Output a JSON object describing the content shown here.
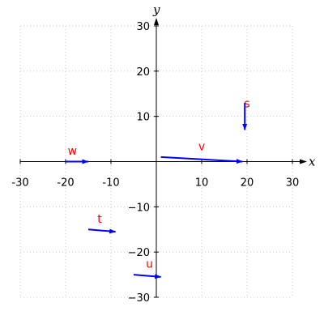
{
  "chart_data": {
    "type": "scatter",
    "kind": "vector-plot",
    "title": "",
    "xlabel": "x",
    "ylabel": "y",
    "xlim": [
      -30,
      30
    ],
    "ylim": [
      -30,
      30
    ],
    "x_ticks": [
      -30,
      -20,
      -10,
      10,
      20,
      30
    ],
    "y_ticks": [
      -30,
      -20,
      -10,
      10,
      20,
      30
    ],
    "x_tick_labels": [
      "-30",
      "-20",
      "-10",
      "10",
      "20",
      "30"
    ],
    "y_tick_labels": [
      "−30",
      "−20",
      "−10",
      "10",
      "20",
      "30"
    ],
    "grid": true,
    "grid_style": "dotted",
    "colors": {
      "vector": "#0000ff",
      "label": "#ff0000",
      "grid": "#c8c8c8",
      "axis": "#000000"
    },
    "vectors": [
      {
        "name": "v",
        "x0": 1,
        "y0": 1,
        "x1": 19,
        "y1": 0
      },
      {
        "name": "s",
        "x0": 19.5,
        "y0": 13,
        "x1": 19.5,
        "y1": 7
      },
      {
        "name": "w",
        "x0": -20,
        "y0": 0,
        "x1": -15,
        "y1": 0
      },
      {
        "name": "t",
        "x0": -15,
        "y0": -15,
        "x1": -9,
        "y1": -15.5
      },
      {
        "name": "u",
        "x0": -5,
        "y0": -25,
        "x1": 1,
        "y1": -25.5
      }
    ],
    "label_positions": [
      {
        "name": "v",
        "x": 10,
        "y": 2.5
      },
      {
        "name": "s",
        "x": 20,
        "y": 12
      },
      {
        "name": "w",
        "x": -18.5,
        "y": 1.5
      },
      {
        "name": "t",
        "x": -12.5,
        "y": -13.5
      },
      {
        "name": "u",
        "x": -1.5,
        "y": -23.5
      }
    ]
  }
}
